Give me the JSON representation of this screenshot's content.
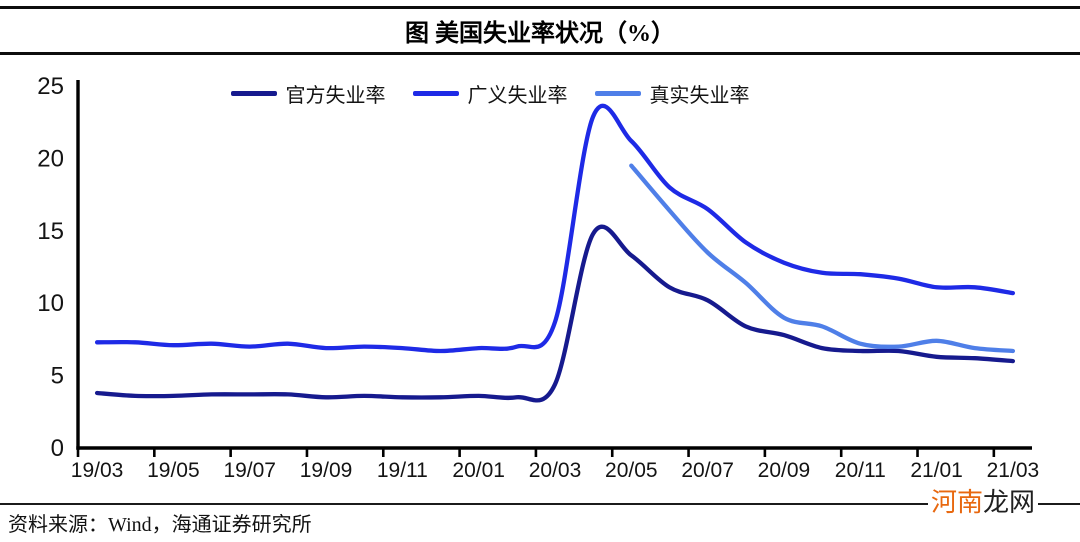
{
  "title": "图  美国失业率状况（%）",
  "source_note": "资料来源：Wind，海通证券研究所",
  "watermark": {
    "part1": "河南",
    "part2": "龙网",
    "part1_color": "#e8680f",
    "part2_color": "#202020"
  },
  "chart_data": {
    "type": "line",
    "title": "图  美国失业率状况（%）",
    "xlabel": "",
    "ylabel": "",
    "ylim": [
      0,
      25
    ],
    "y_ticks": [
      0,
      5,
      10,
      15,
      20,
      25
    ],
    "grid": false,
    "legend_position": "top",
    "axis_color": "#000000",
    "x": [
      "19/03",
      "19/04",
      "19/05",
      "19/06",
      "19/07",
      "19/08",
      "19/09",
      "19/10",
      "19/11",
      "19/12",
      "20/01",
      "20/02",
      "20/03",
      "20/04",
      "20/05",
      "20/06",
      "20/07",
      "20/08",
      "20/09",
      "20/10",
      "20/11",
      "20/12",
      "21/01",
      "21/02",
      "21/03"
    ],
    "x_tick_labels": [
      "19/03",
      "19/05",
      "19/07",
      "19/09",
      "19/11",
      "20/01",
      "20/03",
      "20/05",
      "20/07",
      "20/09",
      "20/11",
      "21/01",
      "21/03"
    ],
    "series": [
      {
        "key": "official",
        "name": "官方失业率",
        "color": "#161a8e",
        "values": [
          3.8,
          3.6,
          3.6,
          3.7,
          3.7,
          3.7,
          3.5,
          3.6,
          3.5,
          3.5,
          3.6,
          3.5,
          4.4,
          14.8,
          13.3,
          11.1,
          10.2,
          8.4,
          7.8,
          6.9,
          6.7,
          6.7,
          6.3,
          6.2,
          6.0
        ]
      },
      {
        "key": "broad",
        "name": "广义失业率",
        "color": "#1e2ae6",
        "values": [
          7.3,
          7.3,
          7.1,
          7.2,
          7.0,
          7.2,
          6.9,
          7.0,
          6.9,
          6.7,
          6.9,
          7.0,
          8.7,
          22.9,
          21.2,
          18.0,
          16.5,
          14.2,
          12.8,
          12.1,
          12.0,
          11.7,
          11.1,
          11.1,
          10.7
        ]
      },
      {
        "key": "real",
        "name": "真实失业率",
        "color": "#4f7fe8",
        "values": [
          null,
          null,
          null,
          null,
          null,
          null,
          null,
          null,
          null,
          null,
          null,
          null,
          null,
          null,
          19.5,
          16.4,
          13.5,
          11.4,
          9.0,
          8.4,
          7.2,
          7.0,
          7.4,
          6.9,
          6.7
        ]
      }
    ]
  }
}
